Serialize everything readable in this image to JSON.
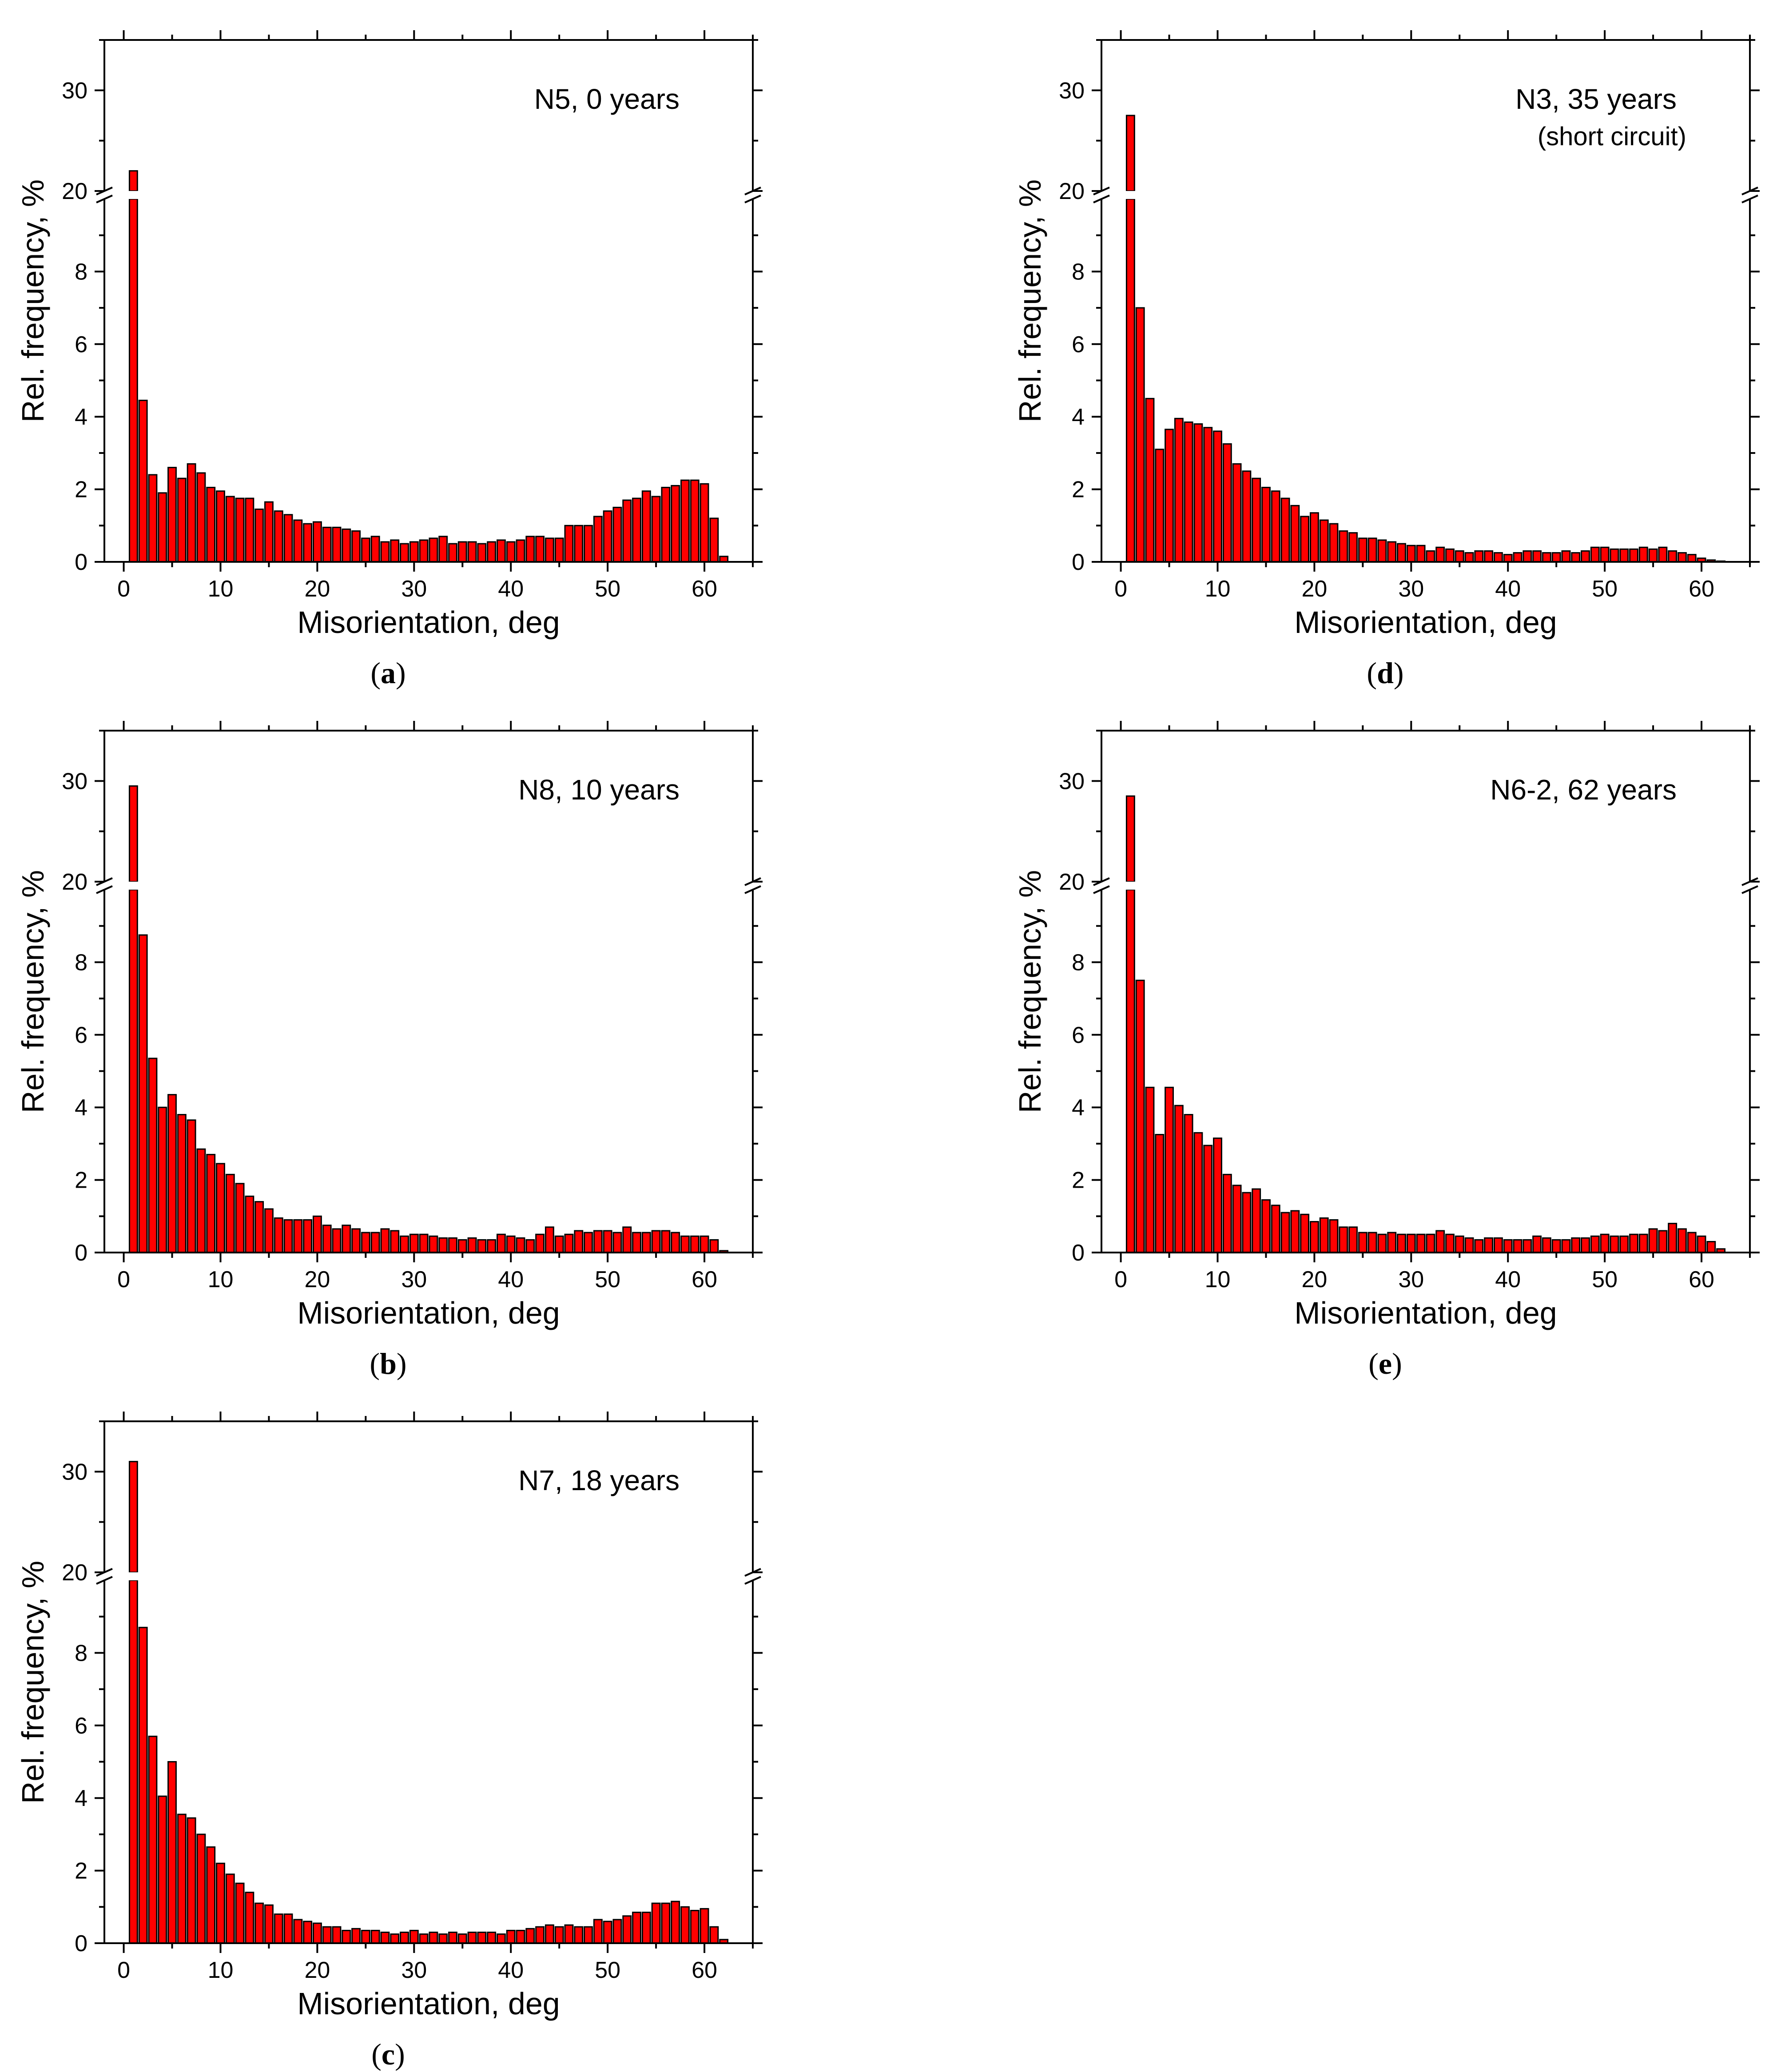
{
  "chart_data": [
    {
      "type": "bar",
      "panel": "a",
      "label": "(a)",
      "annotation": [
        "N5, 0 years"
      ],
      "xlabel": "Misorientation, deg",
      "ylabel": "Rel. frequency, %",
      "xlim": [
        -2,
        65
      ],
      "ylim_lower": [
        0,
        10
      ],
      "ylim_upper": [
        20,
        35
      ],
      "axis_break": [
        10,
        20
      ],
      "xticks": [
        0,
        10,
        20,
        30,
        40,
        50,
        60
      ],
      "yticks_lower": [
        0,
        2,
        4,
        6,
        8
      ],
      "yticks_upper": [
        20,
        30
      ],
      "bin_width": 1,
      "x": [
        1,
        2,
        3,
        4,
        5,
        6,
        7,
        8,
        9,
        10,
        11,
        12,
        13,
        14,
        15,
        16,
        17,
        18,
        19,
        20,
        21,
        22,
        23,
        24,
        25,
        26,
        27,
        28,
        29,
        30,
        31,
        32,
        33,
        34,
        35,
        36,
        37,
        38,
        39,
        40,
        41,
        42,
        43,
        44,
        45,
        46,
        47,
        48,
        49,
        50,
        51,
        52,
        53,
        54,
        55,
        56,
        57,
        58,
        59,
        60,
        61,
        62
      ],
      "values": [
        22,
        4.45,
        2.4,
        1.9,
        2.6,
        2.3,
        2.7,
        2.45,
        2.05,
        1.95,
        1.8,
        1.75,
        1.75,
        1.45,
        1.65,
        1.4,
        1.3,
        1.15,
        1.05,
        1.1,
        0.95,
        0.95,
        0.9,
        0.85,
        0.65,
        0.7,
        0.55,
        0.6,
        0.5,
        0.55,
        0.6,
        0.65,
        0.7,
        0.5,
        0.55,
        0.55,
        0.5,
        0.55,
        0.6,
        0.55,
        0.6,
        0.7,
        0.7,
        0.65,
        0.65,
        1.0,
        1.0,
        1.0,
        1.25,
        1.4,
        1.5,
        1.7,
        1.75,
        1.95,
        1.8,
        2.05,
        2.1,
        2.25,
        2.25,
        2.15,
        1.2,
        0.15
      ]
    },
    {
      "type": "bar",
      "panel": "b",
      "label": "(b)",
      "annotation": [
        "N8, 10 years"
      ],
      "xlabel": "Misorientation, deg",
      "ylabel": "Rel. frequency, %",
      "xlim": [
        -2,
        65
      ],
      "ylim_lower": [
        0,
        10
      ],
      "ylim_upper": [
        20,
        35
      ],
      "axis_break": [
        10,
        20
      ],
      "xticks": [
        0,
        10,
        20,
        30,
        40,
        50,
        60
      ],
      "yticks_lower": [
        0,
        2,
        4,
        6,
        8
      ],
      "yticks_upper": [
        20,
        30
      ],
      "bin_width": 1,
      "x": [
        1,
        2,
        3,
        4,
        5,
        6,
        7,
        8,
        9,
        10,
        11,
        12,
        13,
        14,
        15,
        16,
        17,
        18,
        19,
        20,
        21,
        22,
        23,
        24,
        25,
        26,
        27,
        28,
        29,
        30,
        31,
        32,
        33,
        34,
        35,
        36,
        37,
        38,
        39,
        40,
        41,
        42,
        43,
        44,
        45,
        46,
        47,
        48,
        49,
        50,
        51,
        52,
        53,
        54,
        55,
        56,
        57,
        58,
        59,
        60,
        61,
        62
      ],
      "values": [
        29.5,
        8.75,
        5.35,
        4.0,
        4.35,
        3.8,
        3.65,
        2.85,
        2.7,
        2.45,
        2.15,
        1.9,
        1.55,
        1.4,
        1.2,
        0.95,
        0.9,
        0.9,
        0.9,
        1.0,
        0.75,
        0.65,
        0.75,
        0.65,
        0.55,
        0.55,
        0.65,
        0.6,
        0.45,
        0.5,
        0.5,
        0.45,
        0.4,
        0.4,
        0.35,
        0.4,
        0.35,
        0.35,
        0.5,
        0.45,
        0.4,
        0.35,
        0.5,
        0.7,
        0.45,
        0.5,
        0.6,
        0.55,
        0.6,
        0.6,
        0.55,
        0.7,
        0.55,
        0.55,
        0.6,
        0.6,
        0.55,
        0.45,
        0.45,
        0.45,
        0.35,
        0.05
      ]
    },
    {
      "type": "bar",
      "panel": "c",
      "label": "(c)",
      "annotation": [
        "N7, 18 years"
      ],
      "xlabel": "Misorientation, deg",
      "ylabel": "Rel. frequency, %",
      "xlim": [
        -2,
        65
      ],
      "ylim_lower": [
        0,
        10
      ],
      "ylim_upper": [
        20,
        35
      ],
      "axis_break": [
        10,
        20
      ],
      "xticks": [
        0,
        10,
        20,
        30,
        40,
        50,
        60
      ],
      "yticks_lower": [
        0,
        2,
        4,
        6,
        8
      ],
      "yticks_upper": [
        20,
        30
      ],
      "bin_width": 1,
      "x": [
        1,
        2,
        3,
        4,
        5,
        6,
        7,
        8,
        9,
        10,
        11,
        12,
        13,
        14,
        15,
        16,
        17,
        18,
        19,
        20,
        21,
        22,
        23,
        24,
        25,
        26,
        27,
        28,
        29,
        30,
        31,
        32,
        33,
        34,
        35,
        36,
        37,
        38,
        39,
        40,
        41,
        42,
        43,
        44,
        45,
        46,
        47,
        48,
        49,
        50,
        51,
        52,
        53,
        54,
        55,
        56,
        57,
        58,
        59,
        60,
        61,
        62
      ],
      "values": [
        31,
        8.7,
        5.7,
        4.05,
        5.0,
        3.55,
        3.45,
        3.0,
        2.65,
        2.2,
        1.9,
        1.65,
        1.4,
        1.1,
        1.05,
        0.8,
        0.8,
        0.65,
        0.6,
        0.55,
        0.45,
        0.45,
        0.35,
        0.4,
        0.35,
        0.35,
        0.3,
        0.25,
        0.3,
        0.35,
        0.25,
        0.3,
        0.25,
        0.3,
        0.25,
        0.3,
        0.3,
        0.3,
        0.25,
        0.35,
        0.35,
        0.4,
        0.45,
        0.5,
        0.45,
        0.5,
        0.45,
        0.45,
        0.65,
        0.6,
        0.65,
        0.75,
        0.85,
        0.85,
        1.1,
        1.1,
        1.15,
        1.0,
        0.9,
        0.95,
        0.45,
        0.1
      ]
    },
    {
      "type": "bar",
      "panel": "d",
      "label": "(d)",
      "annotation": [
        "N3, 35 years",
        "(short circuit)"
      ],
      "xlabel": "Misorientation, deg",
      "ylabel": "Rel. frequency, %",
      "xlim": [
        -2,
        65
      ],
      "ylim_lower": [
        0,
        10
      ],
      "ylim_upper": [
        20,
        35
      ],
      "axis_break": [
        10,
        20
      ],
      "xticks": [
        0,
        10,
        20,
        30,
        40,
        50,
        60
      ],
      "yticks_lower": [
        0,
        2,
        4,
        6,
        8
      ],
      "yticks_upper": [
        20,
        30
      ],
      "bin_width": 1,
      "x": [
        1,
        2,
        3,
        4,
        5,
        6,
        7,
        8,
        9,
        10,
        11,
        12,
        13,
        14,
        15,
        16,
        17,
        18,
        19,
        20,
        21,
        22,
        23,
        24,
        25,
        26,
        27,
        28,
        29,
        30,
        31,
        32,
        33,
        34,
        35,
        36,
        37,
        38,
        39,
        40,
        41,
        42,
        43,
        44,
        45,
        46,
        47,
        48,
        49,
        50,
        51,
        52,
        53,
        54,
        55,
        56,
        57,
        58,
        59,
        60,
        61,
        62
      ],
      "values": [
        27.5,
        7.0,
        4.5,
        3.1,
        3.65,
        3.95,
        3.85,
        3.8,
        3.7,
        3.6,
        3.25,
        2.7,
        2.5,
        2.3,
        2.05,
        1.95,
        1.75,
        1.55,
        1.25,
        1.35,
        1.15,
        1.05,
        0.85,
        0.8,
        0.65,
        0.65,
        0.6,
        0.55,
        0.5,
        0.45,
        0.45,
        0.3,
        0.4,
        0.35,
        0.3,
        0.25,
        0.3,
        0.3,
        0.25,
        0.2,
        0.25,
        0.3,
        0.3,
        0.25,
        0.25,
        0.3,
        0.25,
        0.3,
        0.4,
        0.4,
        0.35,
        0.35,
        0.35,
        0.4,
        0.35,
        0.4,
        0.3,
        0.25,
        0.2,
        0.1,
        0.05,
        0.02
      ]
    },
    {
      "type": "bar",
      "panel": "e",
      "label": "(e)",
      "annotation": [
        "N6-2, 62 years"
      ],
      "xlabel": "Misorientation, deg",
      "ylabel": "Rel. frequency, %",
      "xlim": [
        -2,
        65
      ],
      "ylim_lower": [
        0,
        10
      ],
      "ylim_upper": [
        20,
        35
      ],
      "axis_break": [
        10,
        20
      ],
      "xticks": [
        0,
        10,
        20,
        30,
        40,
        50,
        60
      ],
      "yticks_lower": [
        0,
        2,
        4,
        6,
        8
      ],
      "yticks_upper": [
        20,
        30
      ],
      "bin_width": 1,
      "x": [
        1,
        2,
        3,
        4,
        5,
        6,
        7,
        8,
        9,
        10,
        11,
        12,
        13,
        14,
        15,
        16,
        17,
        18,
        19,
        20,
        21,
        22,
        23,
        24,
        25,
        26,
        27,
        28,
        29,
        30,
        31,
        32,
        33,
        34,
        35,
        36,
        37,
        38,
        39,
        40,
        41,
        42,
        43,
        44,
        45,
        46,
        47,
        48,
        49,
        50,
        51,
        52,
        53,
        54,
        55,
        56,
        57,
        58,
        59,
        60,
        61,
        62
      ],
      "values": [
        28.5,
        7.5,
        4.55,
        3.25,
        4.55,
        4.05,
        3.8,
        3.3,
        2.95,
        3.15,
        2.15,
        1.85,
        1.65,
        1.75,
        1.45,
        1.3,
        1.1,
        1.15,
        1.05,
        0.85,
        0.95,
        0.9,
        0.7,
        0.7,
        0.55,
        0.55,
        0.5,
        0.55,
        0.5,
        0.5,
        0.5,
        0.5,
        0.6,
        0.5,
        0.45,
        0.4,
        0.35,
        0.4,
        0.4,
        0.35,
        0.35,
        0.35,
        0.45,
        0.4,
        0.35,
        0.35,
        0.4,
        0.4,
        0.45,
        0.5,
        0.45,
        0.45,
        0.5,
        0.5,
        0.65,
        0.6,
        0.8,
        0.65,
        0.55,
        0.45,
        0.3,
        0.1
      ]
    }
  ]
}
